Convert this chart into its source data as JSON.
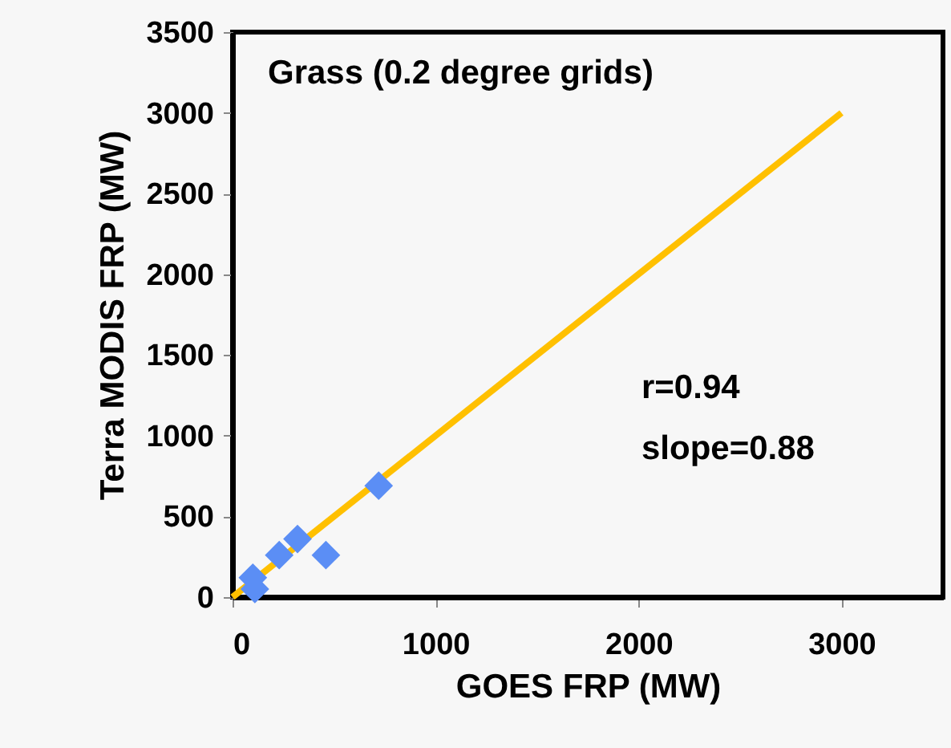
{
  "chart_data": {
    "type": "scatter",
    "title": "Grass (0.2 degree grids)",
    "xlabel": "GOES  FRP (MW)",
    "ylabel": "Terra MODIS FRP (MW)",
    "xlim": [
      0,
      3500
    ],
    "ylim": [
      0,
      3500
    ],
    "xticks": [
      0,
      1000,
      2000,
      3000
    ],
    "yticks": [
      0,
      500,
      1000,
      1500,
      2000,
      2500,
      3000,
      3500
    ],
    "grid": false,
    "marker": "diamond",
    "annotations": [
      "r=0.94",
      "slope=0.88"
    ],
    "series": [
      {
        "color": "#5b8ef5",
        "x": [
          100,
          110,
          230,
          320,
          460,
          720
        ],
        "values": [
          120,
          50,
          260,
          360,
          260,
          690
        ]
      },
      {
        "type": "line",
        "color": "#ffc000",
        "x": [
          0,
          3000
        ],
        "values": [
          0,
          3000
        ],
        "marker": "none",
        "line_style": "solid"
      }
    ]
  }
}
